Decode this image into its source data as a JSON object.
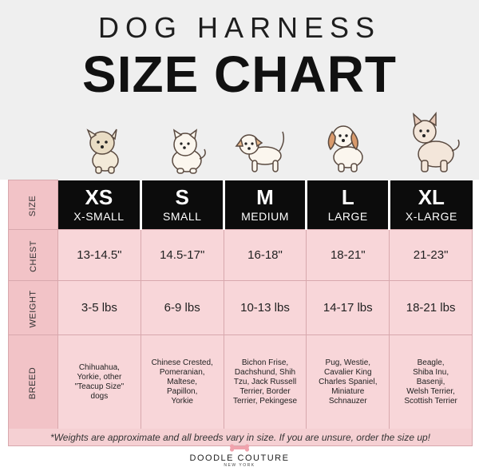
{
  "header": {
    "title_top": "DOG HARNESS",
    "title_main": "SIZE CHART"
  },
  "row_labels": {
    "size": "SIZE",
    "chest": "CHEST",
    "weight": "WEIGHT",
    "breed": "BREED"
  },
  "sizes": [
    {
      "code": "XS",
      "name": "X-SMALL",
      "chest": "13-14.5\"",
      "weight": "3-5 lbs",
      "breeds": [
        "Chihuahua,",
        "Yorkie, other",
        "\"Teacup Size\"",
        "dogs"
      ]
    },
    {
      "code": "S",
      "name": "SMALL",
      "chest": "14.5-17\"",
      "weight": "6-9 lbs",
      "breeds": [
        "Chinese Crested,",
        "Pomeranian,",
        "Maltese,",
        "Papillon,",
        "Yorkie"
      ]
    },
    {
      "code": "M",
      "name": "MEDIUM",
      "chest": "16-18\"",
      "weight": "10-13 lbs",
      "breeds": [
        "Bichon Frise,",
        "Dachshund, Shih",
        "Tzu, Jack Russell",
        "Terrier, Border",
        "Terrier, Pekingese"
      ]
    },
    {
      "code": "L",
      "name": "LARGE",
      "chest": "18-21\"",
      "weight": "14-17 lbs",
      "breeds": [
        "Pug, Westie,",
        "Cavalier King",
        "Charles Spaniel,",
        "Miniature",
        "Schnauzer"
      ]
    },
    {
      "code": "XL",
      "name": "X-LARGE",
      "chest": "21-23\"",
      "weight": "18-21 lbs",
      "breeds": [
        "Beagle,",
        "Shiba Inu,",
        "Basenji,",
        "Welsh Terrier,",
        "Scottish Terrier"
      ]
    }
  ],
  "footnote": "*Weights are approximate and all breeds vary in size. If you are unsure, order the size up!",
  "brand": {
    "name": "DOODLE COUTURE",
    "location": "NEW YORK"
  },
  "colors": {
    "pink": "#f8d6d9",
    "pink_label": "#f2c3c7",
    "black": "#0c0c0c",
    "bone": "#f0a3ad"
  },
  "icons": [
    "yorkie-dog-icon",
    "pomeranian-dog-icon",
    "jack-russell-dog-icon",
    "cavalier-dog-icon",
    "shiba-dog-icon",
    "bone-icon"
  ]
}
